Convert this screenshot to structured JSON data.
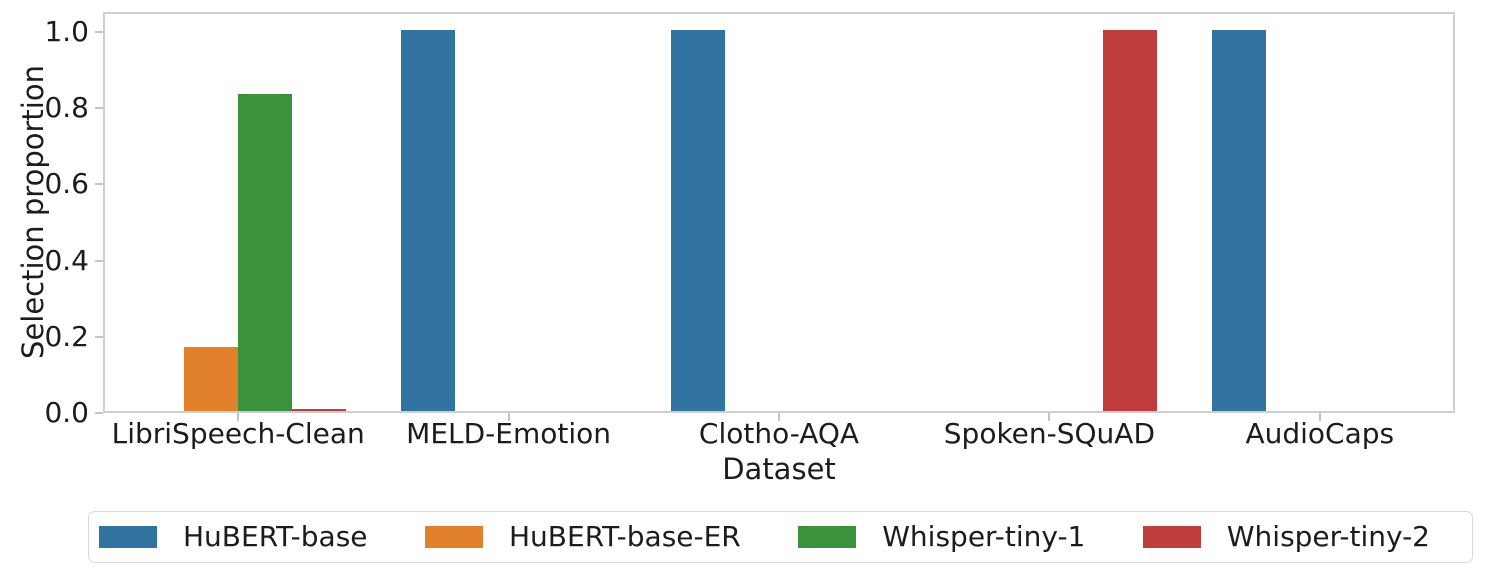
{
  "chart_data": {
    "type": "bar",
    "title": "",
    "xlabel": "Dataset",
    "ylabel": "Selection proportion",
    "categories": [
      "LibriSpeech-Clean",
      "MELD-Emotion",
      "Clotho-AQA",
      "Spoken-SQuAD",
      "AudioCaps"
    ],
    "series": [
      {
        "name": "HuBERT-base",
        "color": "#3274a1",
        "values": [
          0.0,
          1.0,
          1.0,
          0.0,
          1.0
        ]
      },
      {
        "name": "HuBERT-base-ER",
        "color": "#e1812c",
        "values": [
          0.167,
          0.0,
          0.0,
          0.0,
          0.0
        ]
      },
      {
        "name": "Whisper-tiny-1",
        "color": "#3a923a",
        "values": [
          0.833,
          0.0,
          0.0,
          0.0,
          0.0
        ]
      },
      {
        "name": "Whisper-tiny-2",
        "color": "#c03d3e",
        "values": [
          0.005,
          0.0,
          0.0,
          1.0,
          0.0
        ]
      }
    ],
    "ytick_values": [
      0.0,
      0.2,
      0.4,
      0.6,
      0.8,
      1.0
    ],
    "ytick_labels": [
      "0.0",
      "0.2",
      "0.4",
      "0.6",
      "0.8",
      "1.0"
    ],
    "ylim": [
      0,
      1.05
    ],
    "grid": false,
    "legend_position": "bottom"
  }
}
